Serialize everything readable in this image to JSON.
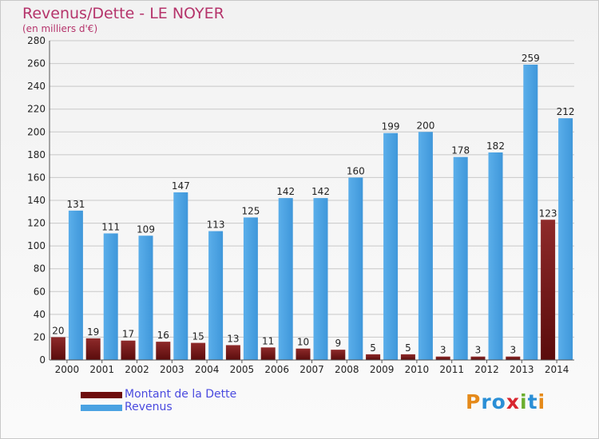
{
  "header": {
    "title": "Revenus/Dette - LE NOYER",
    "subtitle": "(en milliers d'€)"
  },
  "logo": {
    "text": "Proxiti",
    "letters": [
      {
        "ch": "P",
        "color": "#e58a1a"
      },
      {
        "ch": "r",
        "color": "#2a8fd6"
      },
      {
        "ch": "o",
        "color": "#2a8fd6"
      },
      {
        "ch": "x",
        "color": "#d8262f"
      },
      {
        "ch": "i",
        "color": "#6cae2e"
      },
      {
        "ch": "t",
        "color": "#2a8fd6"
      },
      {
        "ch": "i",
        "color": "#e58a1a"
      }
    ]
  },
  "colors": {
    "dette": "#8b1a1a",
    "revenus": "#3c98dc",
    "grid": "#c8c8c8",
    "axis": "#555555"
  },
  "chart_data": {
    "type": "bar",
    "title": "Revenus/Dette - LE NOYER",
    "subtitle": "(en milliers d'€)",
    "xlabel": "",
    "ylabel": "",
    "ylim": [
      0,
      280
    ],
    "yticks": [
      0,
      20,
      40,
      60,
      80,
      100,
      120,
      140,
      160,
      180,
      200,
      220,
      240,
      260,
      280
    ],
    "grid": true,
    "legend_position": "bottom-left",
    "categories": [
      "2000",
      "2001",
      "2002",
      "2003",
      "2004",
      "2005",
      "2006",
      "2007",
      "2008",
      "2009",
      "2010",
      "2011",
      "2012",
      "2013",
      "2014"
    ],
    "series": [
      {
        "name": "Montant de la Dette",
        "values": [
          20,
          19,
          17,
          16,
          15,
          13,
          11,
          10,
          9,
          5,
          5,
          3,
          3,
          3,
          123
        ]
      },
      {
        "name": "Revenus",
        "values": [
          131,
          111,
          109,
          147,
          113,
          125,
          142,
          142,
          160,
          199,
          200,
          178,
          182,
          259,
          212
        ]
      }
    ]
  }
}
